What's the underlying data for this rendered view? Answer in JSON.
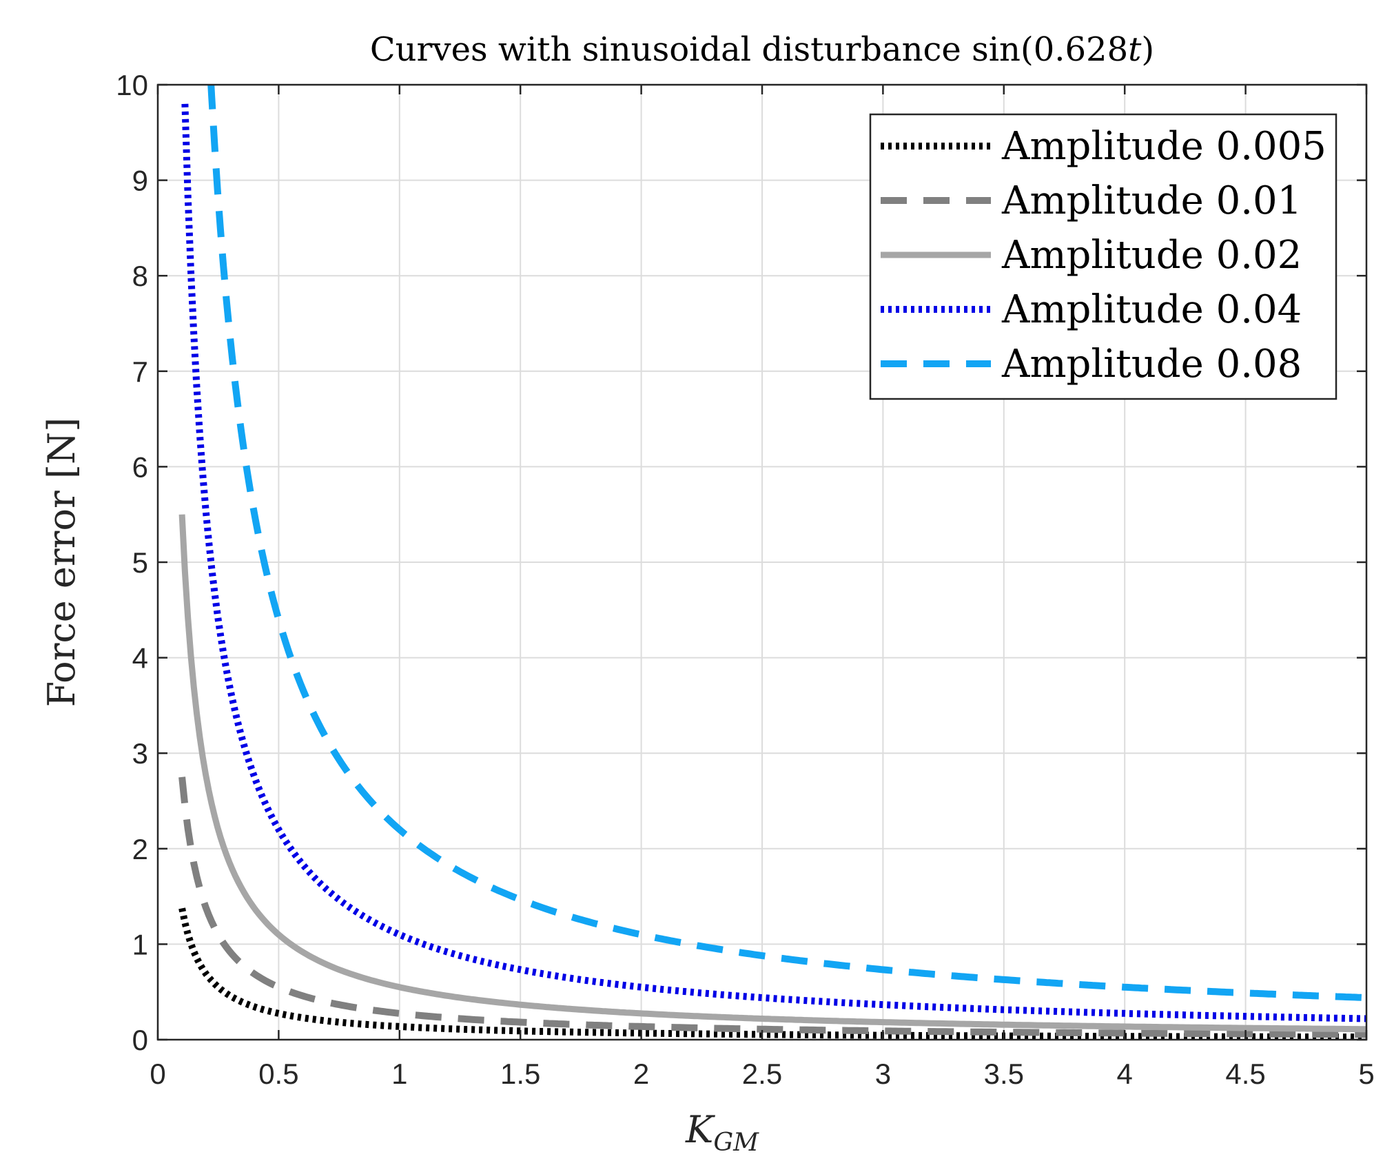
{
  "chart_data": {
    "type": "line",
    "title": "Curves with sinusoidal disturbance sin(0.628t)",
    "title_main": "Curves with sinusoidal disturbance sin(0.628",
    "title_var": "t",
    "title_end": ")",
    "xlabel": "K_GM",
    "xlabel_main": "K",
    "xlabel_sub": "GM",
    "ylabel": "Force error [N]",
    "xlim": [
      0,
      5
    ],
    "ylim": [
      0,
      10
    ],
    "xticks": [
      "0",
      "0.5",
      "1",
      "1.5",
      "2",
      "2.5",
      "3",
      "3.5",
      "4",
      "4.5",
      "5"
    ],
    "yticks": [
      "0",
      "1",
      "2",
      "3",
      "4",
      "5",
      "6",
      "7",
      "8",
      "9",
      "10"
    ],
    "grid": true,
    "legend_position": "top-right",
    "model": "y = c / x",
    "x_start": 0.1,
    "x_end": 5,
    "series": [
      {
        "name": "Amplitude 0.005",
        "coefficient": 0.1375,
        "color": "#000000",
        "style": "dotted",
        "sample_points": [
          [
            0.1,
            1.38
          ],
          [
            0.5,
            0.28
          ],
          [
            1,
            0.14
          ],
          [
            2,
            0.07
          ],
          [
            5,
            0.03
          ]
        ]
      },
      {
        "name": "Amplitude 0.01",
        "coefficient": 0.275,
        "color": "#808080",
        "style": "dashed",
        "sample_points": [
          [
            0.1,
            2.75
          ],
          [
            0.5,
            0.55
          ],
          [
            1,
            0.28
          ],
          [
            2,
            0.14
          ],
          [
            5,
            0.06
          ]
        ]
      },
      {
        "name": "Amplitude 0.02",
        "coefficient": 0.55,
        "color": "#A6A6A6",
        "style": "solid",
        "sample_points": [
          [
            0.1,
            5.5
          ],
          [
            0.5,
            1.1
          ],
          [
            1,
            0.55
          ],
          [
            2,
            0.28
          ],
          [
            5,
            0.11
          ]
        ]
      },
      {
        "name": "Amplitude 0.04",
        "coefficient": 1.1,
        "color": "#0000E6",
        "style": "dotted",
        "sample_points": [
          [
            0.11,
            10.0
          ],
          [
            0.5,
            2.2
          ],
          [
            1,
            1.1
          ],
          [
            2,
            0.55
          ],
          [
            5,
            0.22
          ]
        ]
      },
      {
        "name": "Amplitude 0.08",
        "coefficient": 2.2,
        "color": "#12A5F4",
        "style": "dashed",
        "sample_points": [
          [
            0.22,
            10.0
          ],
          [
            0.5,
            4.4
          ],
          [
            1,
            2.2
          ],
          [
            2,
            1.1
          ],
          [
            5,
            0.44
          ]
        ]
      }
    ]
  }
}
